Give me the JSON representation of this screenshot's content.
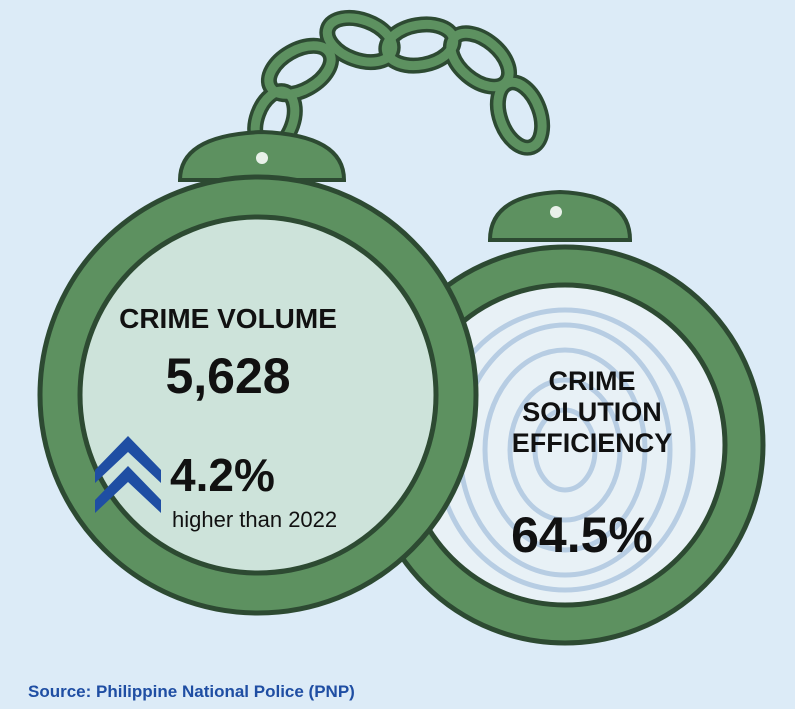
{
  "crime_volume": {
    "label": "CRIME VOLUME",
    "value": "5,628",
    "change": "4.2%",
    "change_note": "higher than 2022"
  },
  "crime_solution_efficiency": {
    "label_lines": [
      "CRIME",
      "SOLUTION",
      "EFFICIENCY"
    ],
    "value": "64.5%"
  },
  "source": "Source: Philippine National Police (PNP)"
}
